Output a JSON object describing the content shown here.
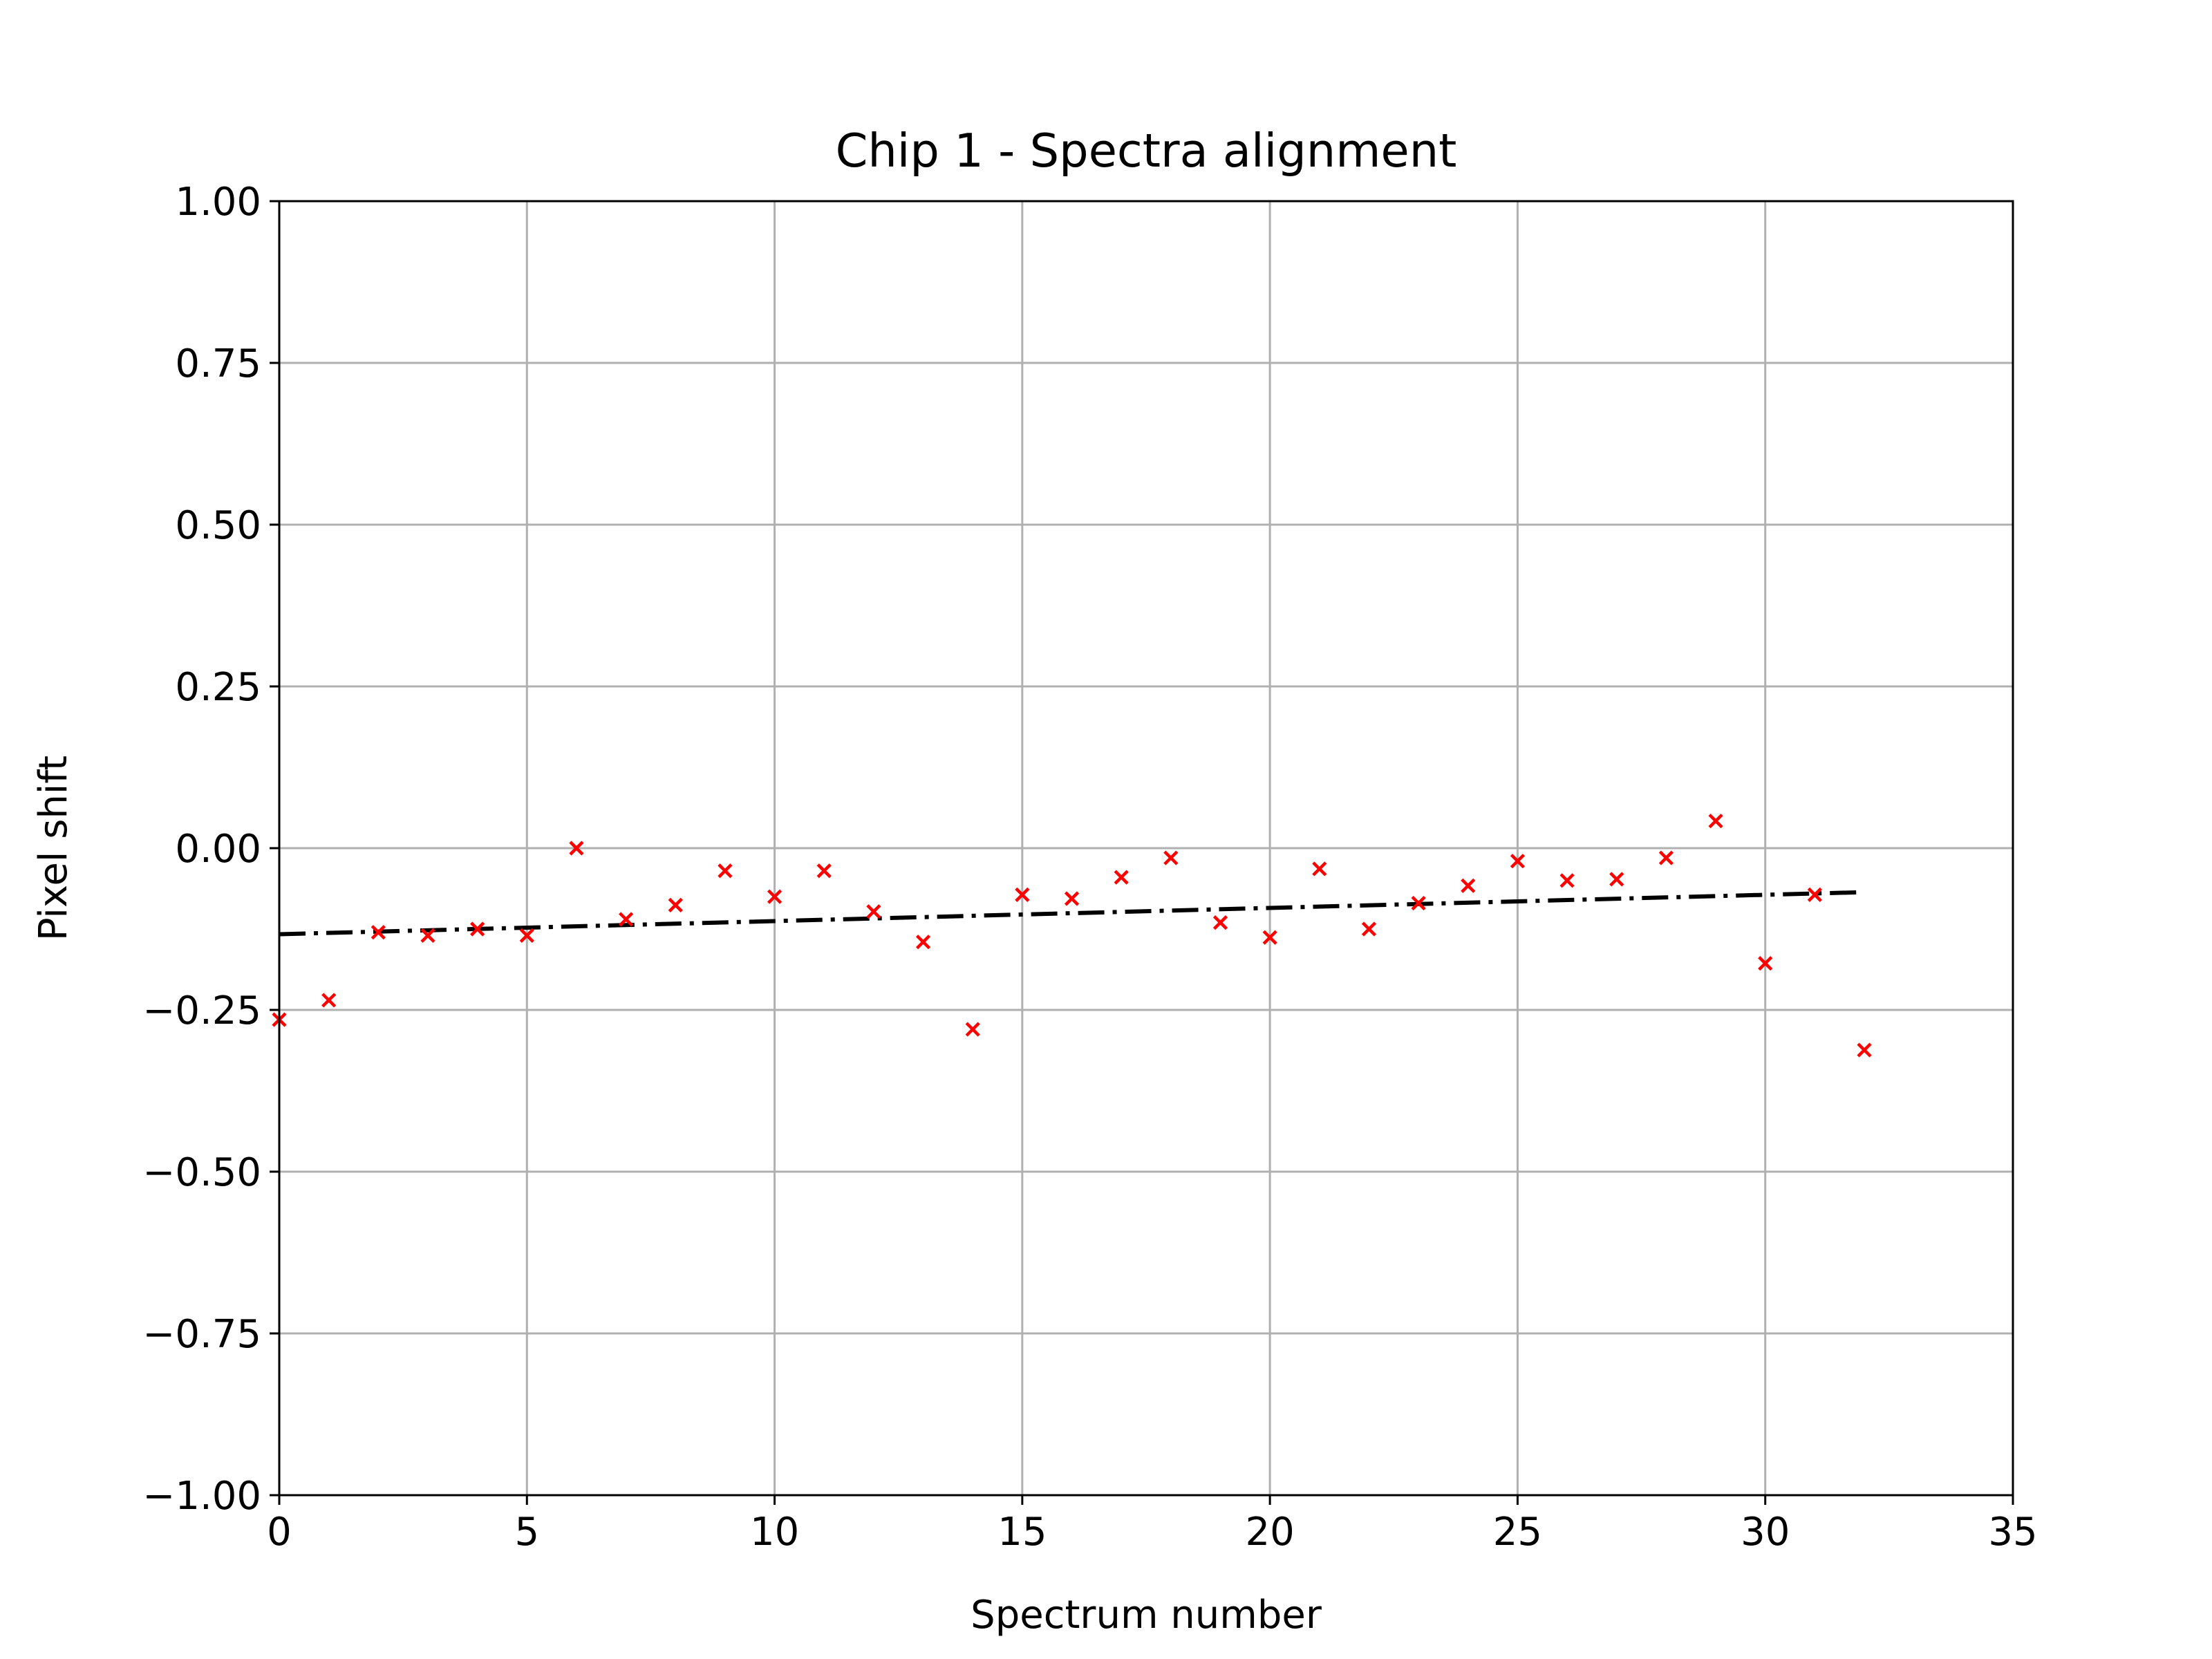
{
  "chart_data": {
    "type": "scatter",
    "title": "Chip 1 - Spectra alignment",
    "xlabel": "Spectrum number",
    "ylabel": "Pixel shift",
    "xlim": [
      0,
      35
    ],
    "ylim": [
      -1.0,
      1.0
    ],
    "x_ticks": [
      0,
      5,
      10,
      15,
      20,
      25,
      30,
      35
    ],
    "x_tick_labels": [
      "0",
      "5",
      "10",
      "15",
      "20",
      "25",
      "30",
      "35"
    ],
    "y_ticks": [
      1.0,
      0.75,
      0.5,
      0.25,
      0.0,
      -0.25,
      -0.5,
      -0.75,
      -1.0
    ],
    "y_tick_labels": [
      "1.00",
      "0.75",
      "0.50",
      "0.25",
      "0.00",
      "−0.25",
      "−0.50",
      "−0.75",
      "−1.00"
    ],
    "grid": true,
    "series": [
      {
        "marker": "x",
        "color": "#ff0000",
        "x": [
          0,
          1,
          2,
          3,
          4,
          5,
          6,
          7,
          8,
          9,
          10,
          11,
          12,
          13,
          14,
          15,
          16,
          17,
          18,
          19,
          20,
          21,
          22,
          23,
          24,
          25,
          26,
          27,
          28,
          29,
          30,
          31,
          32
        ],
        "y": [
          -0.265,
          -0.235,
          -0.13,
          -0.135,
          -0.125,
          -0.135,
          0.0,
          -0.11,
          -0.088,
          -0.035,
          -0.075,
          -0.035,
          -0.098,
          -0.145,
          -0.28,
          -0.072,
          -0.078,
          -0.045,
          -0.015,
          -0.115,
          -0.138,
          -0.032,
          -0.125,
          -0.085,
          -0.058,
          -0.02,
          -0.05,
          -0.048,
          -0.015,
          0.042,
          -0.178,
          -0.072,
          -0.312
        ]
      },
      {
        "type": "line",
        "style": "dash-dot",
        "color": "#000000",
        "x": [
          0,
          32
        ],
        "y": [
          -0.133,
          -0.068
        ]
      }
    ]
  }
}
